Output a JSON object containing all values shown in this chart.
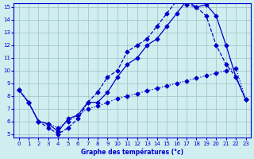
{
  "title": "Graphe des températures (°c)",
  "bg_color": "#d0eef0",
  "line_color": "#0000cc",
  "grid_color": "#aacccc",
  "xlim": [
    0,
    23
  ],
  "ylim": [
    5,
    15
  ],
  "xticks": [
    0,
    1,
    2,
    3,
    4,
    5,
    6,
    7,
    8,
    9,
    10,
    11,
    12,
    13,
    14,
    15,
    16,
    17,
    18,
    19,
    20,
    21,
    22,
    23
  ],
  "yticks": [
    5,
    6,
    7,
    8,
    9,
    10,
    11,
    12,
    13,
    14,
    15
  ],
  "line1_x": [
    0,
    1,
    2,
    3,
    4,
    5,
    6,
    7,
    8,
    9,
    10,
    11,
    12,
    13,
    14,
    15,
    16,
    17,
    18,
    19,
    20,
    21,
    22,
    23
  ],
  "line1_y": [
    8.5,
    7.5,
    6.0,
    5.8,
    5.2,
    6.2,
    6.5,
    7.5,
    7.5,
    8.3,
    9.5,
    10.5,
    11.0,
    12.0,
    12.5,
    13.5,
    14.5,
    15.5,
    15.0,
    15.2,
    14.3,
    12.0,
    9.5,
    7.7
  ],
  "line2_x": [
    0,
    1,
    2,
    3,
    4,
    5,
    6,
    7,
    8,
    9,
    10,
    11,
    12,
    13,
    14,
    15,
    16,
    17,
    18,
    19,
    20,
    21,
    22,
    23
  ],
  "line2_y": [
    8.5,
    7.5,
    6.0,
    5.5,
    5.0,
    5.5,
    6.2,
    7.5,
    8.3,
    9.5,
    10.0,
    11.5,
    12.0,
    12.5,
    13.5,
    14.5,
    15.5,
    15.2,
    15.0,
    14.3,
    12.0,
    10.5,
    9.5,
    7.7
  ],
  "line3_x": [
    0,
    1,
    2,
    3,
    4,
    5,
    6,
    7,
    8,
    9,
    10,
    11,
    12,
    13,
    14,
    15,
    16,
    17,
    18,
    19,
    20,
    21,
    22,
    23
  ],
  "line3_y": [
    8.5,
    7.5,
    6.0,
    5.8,
    5.5,
    6.0,
    6.5,
    7.0,
    7.2,
    7.5,
    7.8,
    8.0,
    8.2,
    8.4,
    8.6,
    8.8,
    9.0,
    9.2,
    9.4,
    9.6,
    9.8,
    10.0,
    10.2,
    7.7
  ]
}
